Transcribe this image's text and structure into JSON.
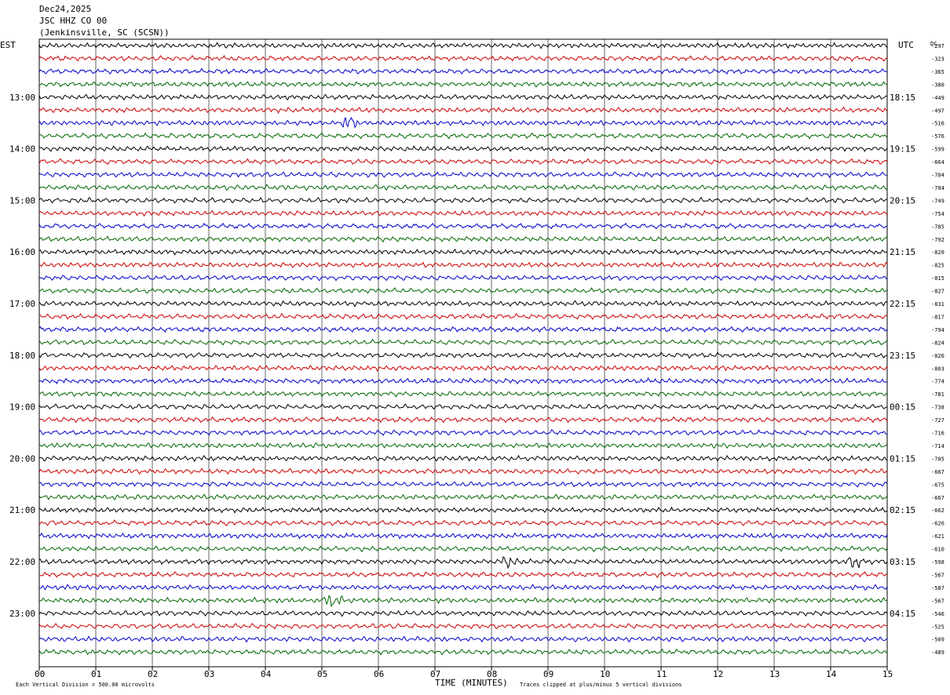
{
  "header": {
    "date": "Dec24,2025",
    "station": "JSC HHZ CO 00",
    "location": "(Jenkinsville, SC (SCSN))"
  },
  "chart_data": {
    "type": "line",
    "title": "Dec24,2025",
    "left_axis_label": "EST",
    "right_axis_label": "UTC",
    "dc_label": "DC",
    "xlabel": "TIME (MINUTES)",
    "x_ticks": [
      "00",
      "01",
      "02",
      "03",
      "04",
      "05",
      "06",
      "07",
      "08",
      "09",
      "10",
      "11",
      "12",
      "13",
      "14",
      "15"
    ],
    "xlim": [
      0,
      15
    ],
    "lines_per_hour": 4,
    "trace_colors": [
      "#000000",
      "#cc0000",
      "#0000cc",
      "#006600"
    ],
    "left_hour_labels": [
      "13:00",
      "14:00",
      "15:00",
      "16:00",
      "17:00",
      "18:00",
      "19:00",
      "20:00",
      "21:00",
      "22:00",
      "23:00"
    ],
    "right_hour_labels": [
      "18:15",
      "19:15",
      "20:15",
      "21:15",
      "22:15",
      "23:15",
      "00:15",
      "01:15",
      "02:15",
      "03:15",
      "04:15"
    ],
    "dc_offsets": [
      -297,
      -323,
      -365,
      -380,
      -449,
      -497,
      -516,
      -576,
      -599,
      -664,
      -704,
      -704,
      -749,
      -754,
      -785,
      -792,
      -820,
      -825,
      -815,
      -827,
      -831,
      -817,
      -794,
      -824,
      -826,
      -803,
      -774,
      -781,
      -738,
      -727,
      -716,
      -714,
      -705,
      -667,
      -675,
      -667,
      -662,
      -626,
      -621,
      -610,
      -598,
      -567,
      -587,
      -567,
      -546,
      -525,
      -509,
      -489
    ],
    "events": [
      {
        "trace": 6,
        "minute": 5.5,
        "label": ""
      },
      {
        "trace": 40,
        "minute": 8.3,
        "label": ""
      },
      {
        "trace": 40,
        "minute": 14.4,
        "label": ""
      },
      {
        "trace": 43,
        "minute": 5.2,
        "label": ""
      }
    ],
    "grid": true
  },
  "footer": {
    "scale_note": "Each Vertical Division =  500.00 microvolts",
    "clip_note": "Traces clipped at plus/minus 5 vertical divisions"
  }
}
